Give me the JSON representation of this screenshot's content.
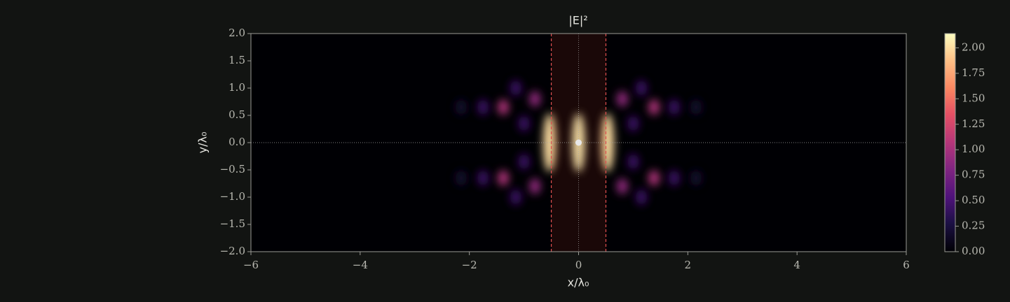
{
  "chart_data": {
    "type": "heatmap",
    "title": "|E|²",
    "xlabel": "x/λ₀",
    "ylabel": "y/λ₀",
    "xlim": [
      -6,
      6
    ],
    "ylim": [
      -2,
      2
    ],
    "xticks": [
      {
        "value": -6,
        "label": "−6"
      },
      {
        "value": -4,
        "label": "−4"
      },
      {
        "value": -2,
        "label": "−2"
      },
      0,
      2,
      4,
      6
    ],
    "yticks": [
      {
        "value": -2,
        "label": "−2.0"
      },
      {
        "value": -1.5,
        "label": "−1.5"
      },
      {
        "value": -1,
        "label": "−1.0"
      },
      {
        "value": -0.5,
        "label": "−0.5"
      },
      {
        "value": 0,
        "label": "0.0"
      },
      {
        "value": 0.5,
        "label": "0.5"
      },
      {
        "value": 1,
        "label": "1.0"
      },
      {
        "value": 1.5,
        "label": "1.5"
      },
      {
        "value": 2,
        "label": "2.0"
      }
    ],
    "clim": [
      0,
      2.14
    ],
    "cticks": [
      {
        "value": 0,
        "label": "0.00"
      },
      {
        "value": 0.25,
        "label": "0.25"
      },
      {
        "value": 0.5,
        "label": "0.50"
      },
      {
        "value": 0.75,
        "label": "0.75"
      },
      {
        "value": 1,
        "label": "1.00"
      },
      {
        "value": 1.25,
        "label": "1.25"
      },
      {
        "value": 1.5,
        "label": "1.50"
      },
      {
        "value": 1.75,
        "label": "1.75"
      },
      {
        "value": 2,
        "label": "2.00"
      }
    ],
    "slab": [
      -0.5,
      0.5
    ],
    "source": {
      "x": 0,
      "y": 0
    },
    "hotspots": {
      "x": [
        0,
        -0.53,
        0.53,
        -0.8,
        0.8,
        -0.8,
        0.8,
        -1.38,
        1.38,
        -1.38,
        1.38,
        -1.75,
        1.75,
        -1.75,
        1.75,
        -2.15,
        2.15,
        -2.15,
        2.15,
        -1.0,
        1.0,
        -1.0,
        1.0,
        -1.15,
        1.15,
        -1.15,
        1.15
      ],
      "y": [
        0,
        0,
        0,
        0.8,
        0.8,
        -0.8,
        -0.8,
        0.65,
        0.65,
        -0.65,
        -0.65,
        0.65,
        0.65,
        -0.65,
        -0.65,
        0.65,
        0.65,
        -0.65,
        -0.65,
        0.35,
        0.35,
        -0.35,
        -0.35,
        1.0,
        1.0,
        -1.0,
        -1.0
      ],
      "values": [
        2.1,
        2.0,
        2.0,
        0.9,
        0.9,
        0.9,
        0.9,
        1.05,
        1.05,
        1.05,
        1.05,
        0.45,
        0.45,
        0.45,
        0.45,
        0.2,
        0.2,
        0.2,
        0.2,
        0.45,
        0.45,
        0.45,
        0.45,
        0.45,
        0.45,
        0.45,
        0.45
      ]
    }
  }
}
